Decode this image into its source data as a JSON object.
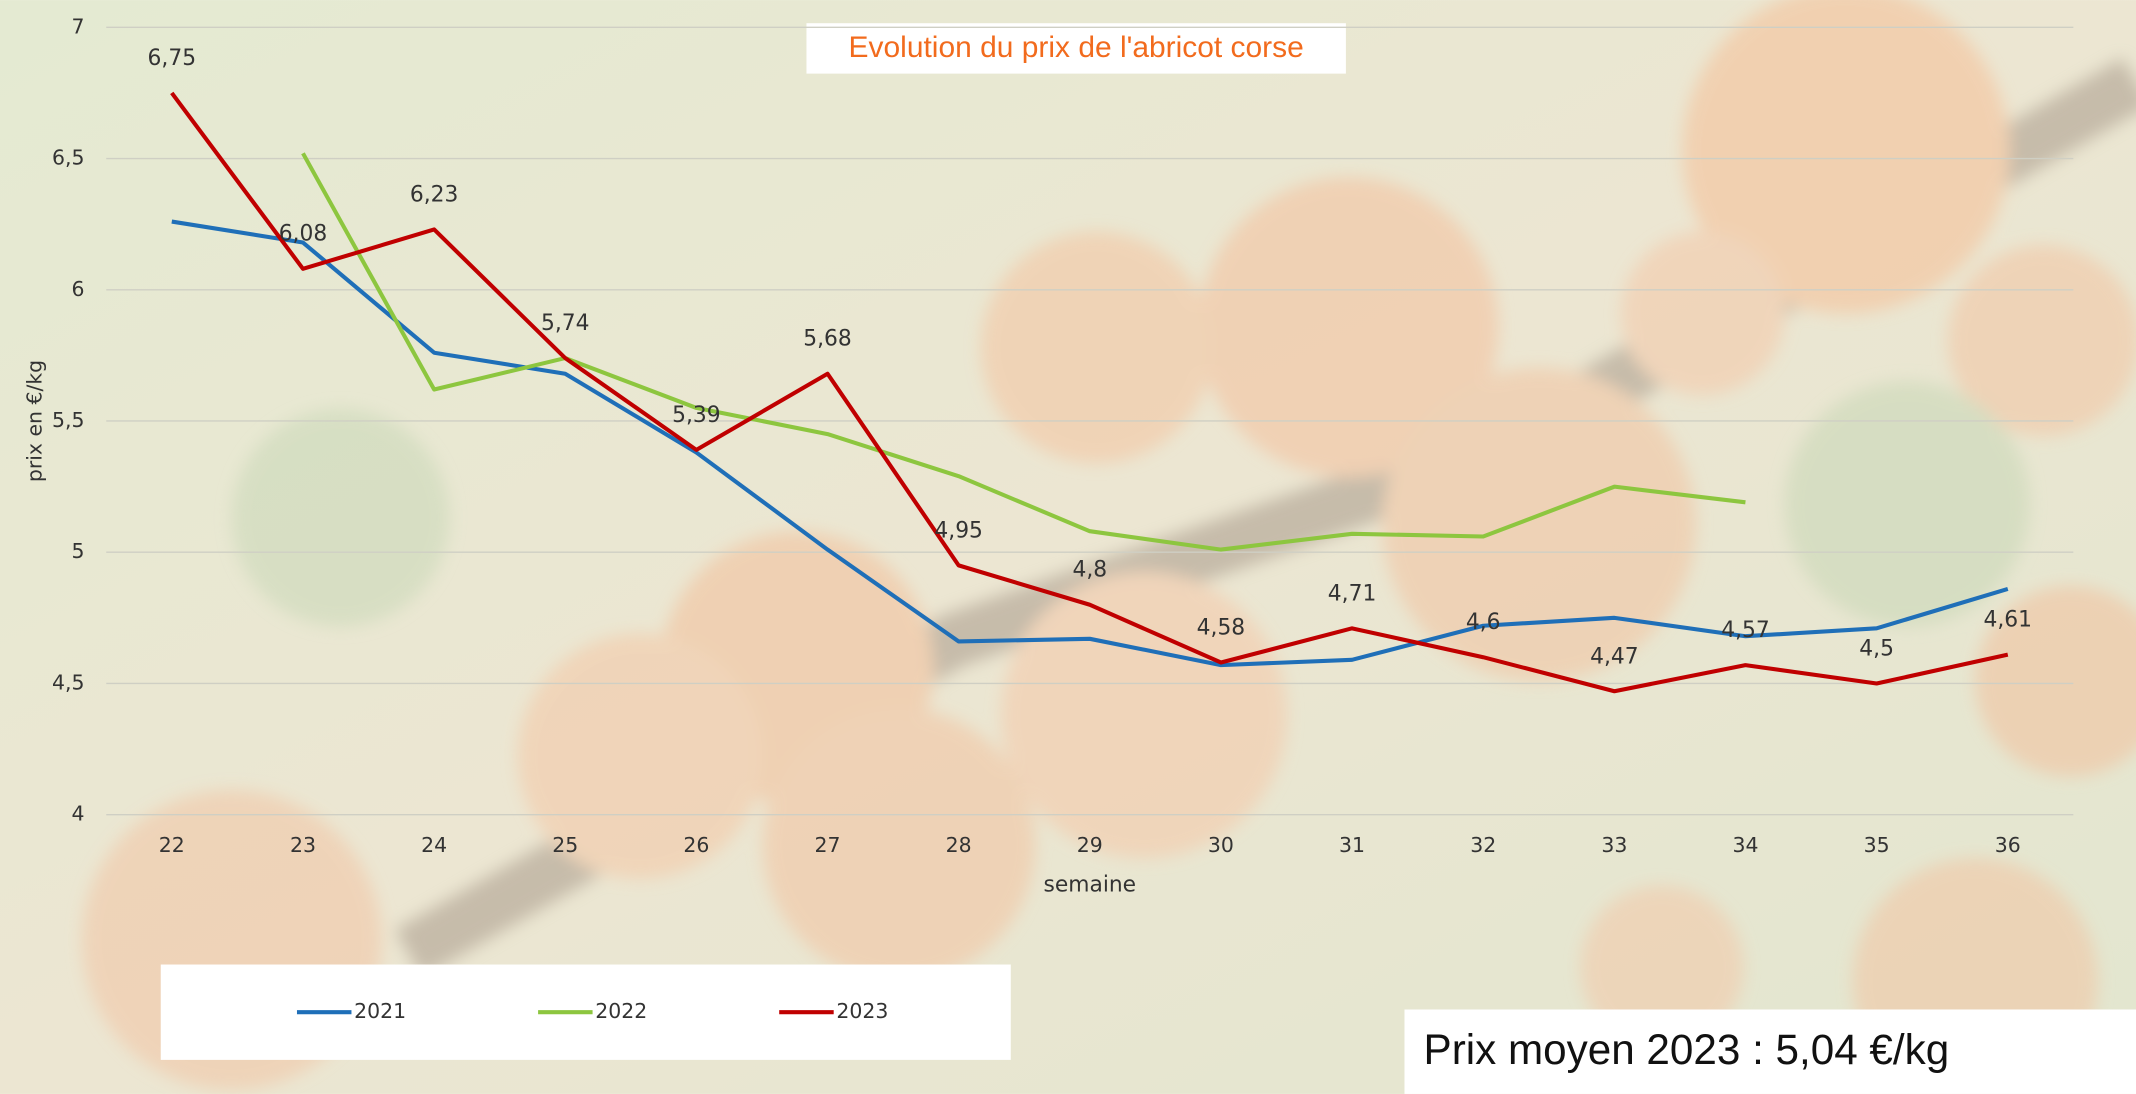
{
  "chart_data": {
    "type": "line",
    "title": "Evolution du prix de l'abricot corse",
    "x_label": "semaine",
    "y_label": "prix en €/kg",
    "annotation": "Prix moyen 2023 : 5,04 €/kg",
    "categories": [
      "22",
      "23",
      "24",
      "25",
      "26",
      "27",
      "28",
      "29",
      "30",
      "31",
      "32",
      "33",
      "34",
      "35",
      "36"
    ],
    "ylim": [
      4,
      7
    ],
    "yticks": [
      4,
      {
        "value": 4.5,
        "label": "4,5"
      },
      5,
      {
        "value": 5.5,
        "label": "5,5"
      },
      6,
      {
        "value": 6.5,
        "label": "6,5"
      },
      7
    ],
    "grid": true,
    "legend": "bottom",
    "series": [
      {
        "name": "2021",
        "color": "#1f6fb8",
        "values": [
          6.26,
          6.18,
          5.76,
          5.68,
          5.38,
          5.01,
          4.66,
          4.67,
          4.57,
          4.59,
          4.72,
          4.75,
          4.68,
          4.71,
          4.86
        ]
      },
      {
        "name": "2022",
        "color": "#8dc63f",
        "values": [
          null,
          6.52,
          5.62,
          5.74,
          5.55,
          5.45,
          5.29,
          5.08,
          5.01,
          5.07,
          5.06,
          5.25,
          5.19,
          null,
          null
        ]
      },
      {
        "name": "2023",
        "color": "#c00000",
        "values": [
          6.75,
          6.08,
          6.23,
          5.74,
          5.39,
          5.68,
          4.95,
          4.8,
          4.58,
          4.71,
          4.6,
          4.47,
          4.57,
          4.5,
          4.61
        ],
        "value_labels": [
          "6,75",
          "6,08",
          "6,23",
          "5,74",
          "5,39",
          "5,68",
          "4,95",
          "4,8",
          "4,58",
          "4,71",
          "4,6",
          "4,47",
          "4,57",
          "4,5",
          "4,61"
        ]
      }
    ]
  }
}
